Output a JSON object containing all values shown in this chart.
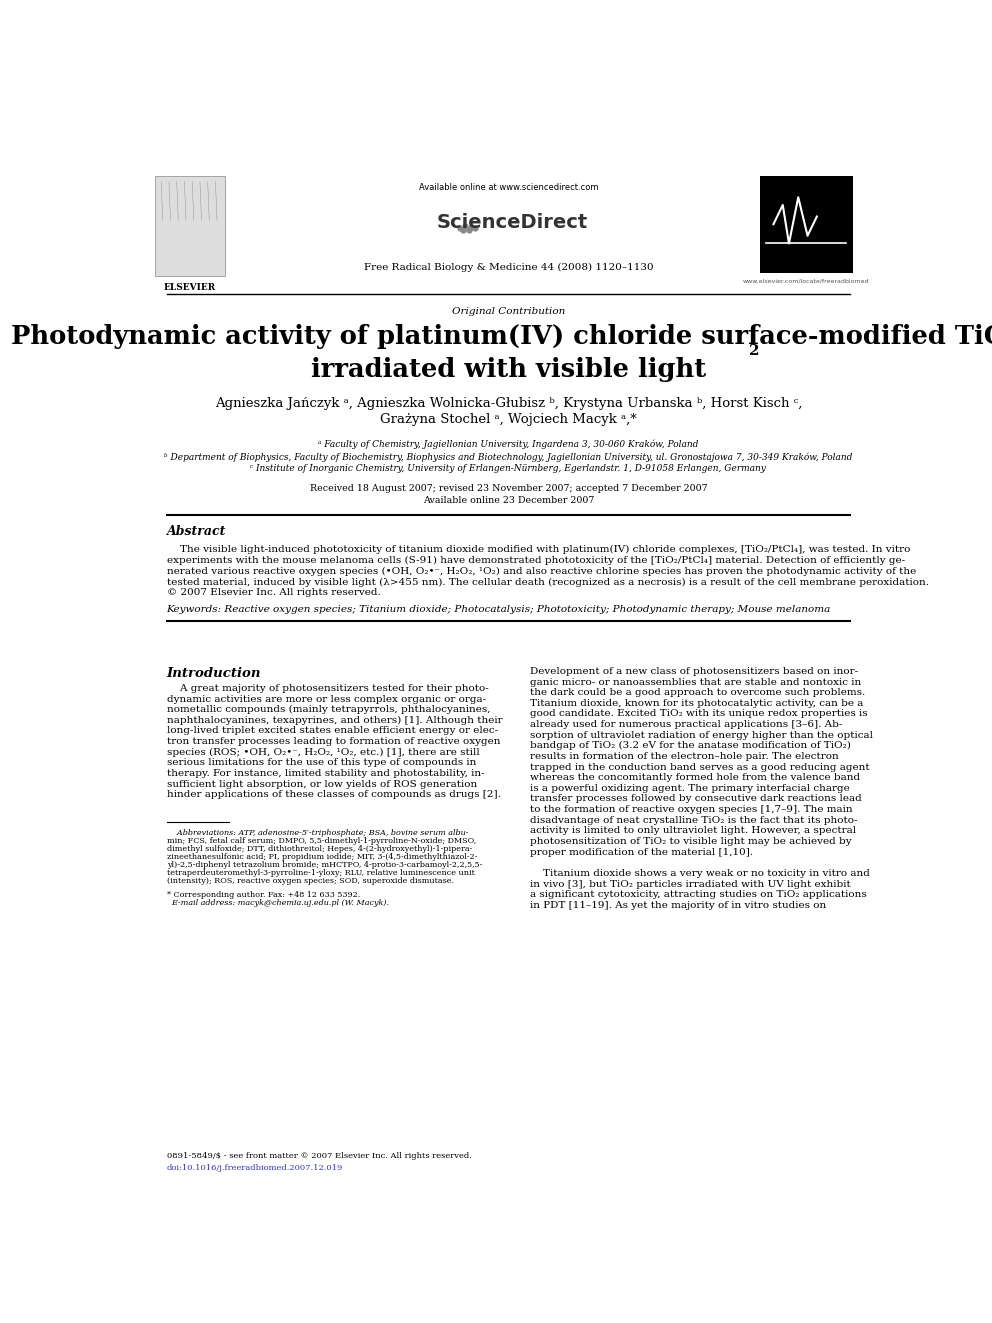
{
  "bg_color": "#ffffff",
  "page_width": 9.92,
  "page_height": 13.23,
  "dpi": 100,
  "journal": "Free Radical Biology & Medicine 44 (2008) 1120–1130",
  "url_left": "Available online at www.sciencedirect.com",
  "url_right": "www.elsevier.com/locate/freeradbiomed",
  "section_label": "Original Contribution",
  "title_line1": "Photodynamic activity of platinum(IV) chloride surface-modified TiO",
  "title_sub": "2",
  "title_line2": "irradiated with visible light",
  "authors1": "Agnieszka Jańczyk ᵃ, Agnieszka Wolnicka-Głubisz ᵇ, Krystyna Urbanska ᵇ, Horst Kisch ᶜ,",
  "authors2": "Grażyna Stochel ᵃ, Wojciech Macyk ᵃ,*",
  "affil_a": "ᵃ Faculty of Chemistry, Jagiellonian University, Ingardena 3, 30-060 Kraków, Poland",
  "affil_b": "ᵇ Department of Biophysics, Faculty of Biochemistry, Biophysics and Biotechnology, Jagiellonian University, ul. Gronostajowa 7, 30-349 Kraków, Poland",
  "affil_c": "ᶜ Institute of Inorganic Chemistry, University of Erlangen-Nürnberg, Egerlandstr. 1, D-91058 Erlangen, Germany",
  "received": "Received 18 August 2007; revised 23 November 2007; accepted 7 December 2007",
  "available": "Available online 23 December 2007",
  "abstract_title": "Abstract",
  "abstract_text1": "    The visible light-induced phototoxicity of titanium dioxide modified with platinum(IV) chloride complexes, [TiO₂/PtCl₄], was tested. In vitro",
  "abstract_text2": "experiments with the mouse melanoma cells (S-91) have demonstrated phototoxicity of the [TiO₂/PtCl₄] material. Detection of efficiently ge-",
  "abstract_text3": "nerated various reactive oxygen species (•OH, O₂•⁻, H₂O₂, ¹O₂) and also reactive chlorine species has proven the photodynamic activity of the",
  "abstract_text4": "tested material, induced by visible light (λ>455 nm). The cellular death (recognized as a necrosis) is a result of the cell membrane peroxidation.",
  "abstract_text5": "© 2007 Elsevier Inc. All rights reserved.",
  "keywords": "Keywords: Reactive oxygen species; Titanium dioxide; Photocatalysis; Phototoxicity; Photodynamic therapy; Mouse melanoma",
  "intro_title": "Introduction",
  "col1_lines": [
    "    A great majority of photosensitizers tested for their photo-",
    "dynamic activities are more or less complex organic or orga-",
    "nometallic compounds (mainly tetrapyrrols, phthalocyanines,",
    "naphthalocyanines, texapyrines, and others) [1]. Although their",
    "long-lived triplet excited states enable efficient energy or elec-",
    "tron transfer processes leading to formation of reactive oxygen",
    "species (ROS; •OH, O₂•⁻, H₂O₂, ¹O₂, etc.) [1], there are still",
    "serious limitations for the use of this type of compounds in",
    "therapy. For instance, limited stability and photostability, in-",
    "sufficient light absorption, or low yields of ROS generation",
    "hinder applications of these classes of compounds as drugs [2]."
  ],
  "col2_lines": [
    "Development of a new class of photosensitizers based on inor-",
    "ganic micro- or nanoassemblies that are stable and nontoxic in",
    "the dark could be a good approach to overcome such problems.",
    "Titanium dioxide, known for its photocatalytic activity, can be a",
    "good candidate. Excited TiO₂ with its unique redox properties is",
    "already used for numerous practical applications [3–6]. Ab-",
    "sorption of ultraviolet radiation of energy higher than the optical",
    "bandgap of TiO₂ (3.2 eV for the anatase modification of TiO₂)",
    "results in formation of the electron–hole pair. The electron",
    "trapped in the conduction band serves as a good reducing agent",
    "whereas the concomitantly formed hole from the valence band",
    "is a powerful oxidizing agent. The primary interfacial charge",
    "transfer processes followed by consecutive dark reactions lead",
    "to the formation of reactive oxygen species [1,7–9]. The main",
    "disadvantage of neat crystalline TiO₂ is the fact that its photo-",
    "activity is limited to only ultraviolet light. However, a spectral",
    "photosensitization of TiO₂ to visible light may be achieved by",
    "proper modification of the material [1,10]."
  ],
  "col2_para2": [
    "    Titanium dioxide shows a very weak or no toxicity in vitro and",
    "in vivo [3], but TiO₂ particles irradiated with UV light exhibit",
    "a significant cytotoxicity, attracting studies on TiO₂ applications",
    "in PDT [11–19]. As yet the majority of in vitro studies on"
  ],
  "footnote_lines": [
    "    Abbreviations: ATP, adenosine-5′-triphosphate; BSA, bovine serum albu-",
    "min; FCS, fetal calf serum; DMPO, 5,5-dimethyl-1-pyrroline-N-oxide; DMSO,",
    "dimethyl sulfoxide; DTT, dithiothreitol; Hepes, 4-(2-hydroxyethyl)-1-pipera-",
    "zineethanesulfonic acid; PI, propidium iodide; MIT, 3-(4,5-dimethylthiazol-2-",
    "yl)-2,5-diphenyl tetrazolium bromide; mHCTPO, 4-protio-3-carbamoyl-2,2,5,5-",
    "tetraperdeuteromethyl-3-pyrroline-1-yloxy; RLU, relative luminescence unit",
    "(intensity); ROS, reactive oxygen species; SOD, superoxide dismutase."
  ],
  "footnote_star_lines": [
    "* Corresponding author. Fax: +48 12 633 5392.",
    "  E-mail address: macyk@chemia.uj.edu.pl (W. Macyk)."
  ],
  "footer_issn": "0891-5849/$ - see front matter © 2007 Elsevier Inc. All rights reserved.",
  "footer_doi": "doi:10.1016/j.freeradbiomed.2007.12.019"
}
